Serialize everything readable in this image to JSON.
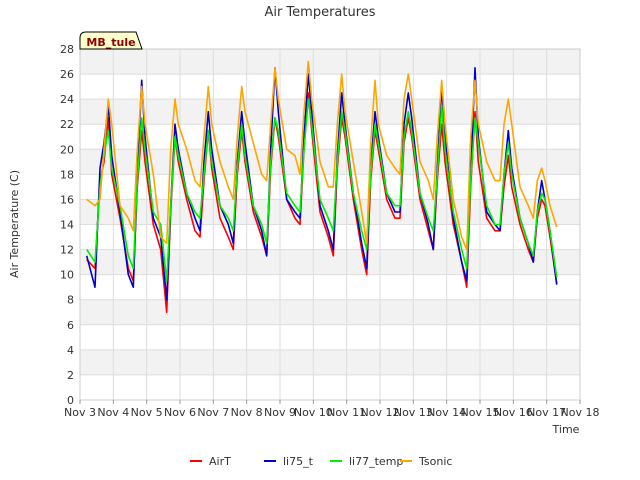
{
  "chart_data": {
    "type": "line",
    "title": "Air Temperatures",
    "xlabel": "Time",
    "ylabel": "Air Temperature (C)",
    "badge": "MB_tule",
    "xlim": [
      3,
      18
    ],
    "ylim": [
      0,
      28
    ],
    "x_ticks": [
      {
        "value": 3,
        "label": "Nov 3"
      },
      {
        "value": 4,
        "label": "Nov 4"
      },
      {
        "value": 5,
        "label": "Nov 5"
      },
      {
        "value": 6,
        "label": "Nov 6"
      },
      {
        "value": 7,
        "label": "Nov 7"
      },
      {
        "value": 8,
        "label": "Nov 8"
      },
      {
        "value": 9,
        "label": "Nov 9"
      },
      {
        "value": 10,
        "label": "Nov 10"
      },
      {
        "value": 11,
        "label": "Nov 11"
      },
      {
        "value": 12,
        "label": "Nov 12"
      },
      {
        "value": 13,
        "label": "Nov 13"
      },
      {
        "value": 14,
        "label": "Nov 14"
      },
      {
        "value": 15,
        "label": "Nov 15"
      },
      {
        "value": 16,
        "label": "Nov 16"
      },
      {
        "value": 17,
        "label": "Nov 17"
      },
      {
        "value": 18,
        "label": "Nov 18"
      }
    ],
    "y_ticks": [
      0,
      2,
      4,
      6,
      8,
      10,
      12,
      14,
      16,
      18,
      20,
      22,
      24,
      26,
      28
    ],
    "grid": true,
    "legend_position": "bottom",
    "series": [
      {
        "name": "AirT",
        "color": "#ff0000",
        "x": [
          3.2,
          3.45,
          3.6,
          3.72,
          3.85,
          3.95,
          4.2,
          4.45,
          4.6,
          4.72,
          4.85,
          4.95,
          5.2,
          5.42,
          5.6,
          5.72,
          5.85,
          5.95,
          6.2,
          6.45,
          6.6,
          6.72,
          6.85,
          6.95,
          7.2,
          7.45,
          7.6,
          7.72,
          7.85,
          7.95,
          8.2,
          8.45,
          8.6,
          8.72,
          8.85,
          8.95,
          9.2,
          9.45,
          9.6,
          9.72,
          9.85,
          9.95,
          10.2,
          10.45,
          10.6,
          10.72,
          10.85,
          10.95,
          11.2,
          11.45,
          11.6,
          11.72,
          11.85,
          11.95,
          12.2,
          12.45,
          12.6,
          12.72,
          12.85,
          12.95,
          13.2,
          13.45,
          13.6,
          13.72,
          13.85,
          13.95,
          14.2,
          14.45,
          14.6,
          14.72,
          14.85,
          14.95,
          15.2,
          15.45,
          15.6,
          15.72,
          15.85,
          15.95,
          16.2,
          16.45,
          16.6,
          16.72,
          16.85,
          16.95,
          17.1,
          17.3
        ],
        "values": [
          11.2,
          10.5,
          17.5,
          19.0,
          22.5,
          18.0,
          14.5,
          10.5,
          9.5,
          17.0,
          21.5,
          19.0,
          14.0,
          12.0,
          7.0,
          15.0,
          21.0,
          19.0,
          16.0,
          13.5,
          13.0,
          17.5,
          21.5,
          18.5,
          14.5,
          13.0,
          12.0,
          18.0,
          21.5,
          19.0,
          15.0,
          13.0,
          11.5,
          18.5,
          22.5,
          21.0,
          16.0,
          14.5,
          14.0,
          20.0,
          24.5,
          21.5,
          15.0,
          13.0,
          11.5,
          18.5,
          22.5,
          21.0,
          16.0,
          12.0,
          10.0,
          17.5,
          21.5,
          20.0,
          16.0,
          14.5,
          14.5,
          20.5,
          22.5,
          21.0,
          16.0,
          13.5,
          12.0,
          17.5,
          22.0,
          19.0,
          14.0,
          11.0,
          9.0,
          17.0,
          23.0,
          19.0,
          14.5,
          13.5,
          13.5,
          17.0,
          19.5,
          17.0,
          14.0,
          12.0,
          11.0,
          14.5,
          16.0,
          15.5,
          13.0,
          9.3
        ]
      },
      {
        "name": "li75_t",
        "color": "#0000cc",
        "x": [
          3.2,
          3.45,
          3.6,
          3.72,
          3.85,
          3.95,
          4.2,
          4.45,
          4.6,
          4.72,
          4.85,
          4.95,
          5.2,
          5.42,
          5.6,
          5.72,
          5.85,
          5.95,
          6.2,
          6.45,
          6.6,
          6.72,
          6.85,
          6.95,
          7.2,
          7.45,
          7.6,
          7.72,
          7.85,
          7.95,
          8.2,
          8.45,
          8.6,
          8.72,
          8.85,
          8.95,
          9.2,
          9.45,
          9.6,
          9.72,
          9.85,
          9.95,
          10.2,
          10.45,
          10.6,
          10.72,
          10.85,
          10.95,
          11.2,
          11.45,
          11.6,
          11.72,
          11.85,
          11.95,
          12.2,
          12.45,
          12.6,
          12.72,
          12.85,
          12.95,
          13.2,
          13.45,
          13.6,
          13.72,
          13.85,
          13.95,
          14.2,
          14.45,
          14.6,
          14.72,
          14.85,
          14.95,
          15.2,
          15.45,
          15.6,
          15.72,
          15.85,
          15.95,
          16.2,
          16.45,
          16.6,
          16.72,
          16.85,
          16.95,
          17.1,
          17.3
        ],
        "values": [
          11.5,
          9.0,
          18.5,
          20.5,
          23.5,
          19.5,
          15.0,
          10.0,
          9.0,
          18.0,
          25.5,
          21.0,
          14.5,
          13.0,
          8.0,
          15.5,
          22.0,
          20.0,
          16.5,
          14.5,
          13.5,
          19.0,
          23.0,
          20.0,
          15.5,
          14.0,
          12.5,
          19.0,
          23.0,
          20.5,
          15.5,
          13.5,
          11.5,
          20.0,
          26.5,
          23.0,
          16.0,
          15.0,
          14.5,
          21.0,
          26.0,
          23.0,
          15.5,
          13.5,
          12.0,
          19.5,
          24.5,
          22.0,
          16.5,
          12.5,
          10.5,
          18.5,
          23.0,
          21.0,
          16.5,
          15.0,
          15.0,
          22.0,
          24.5,
          22.5,
          16.5,
          14.0,
          12.0,
          18.5,
          25.0,
          21.0,
          14.5,
          11.0,
          9.5,
          18.0,
          26.5,
          21.0,
          15.0,
          14.0,
          13.5,
          18.0,
          21.5,
          18.5,
          14.5,
          12.5,
          11.0,
          15.0,
          17.5,
          16.0,
          13.5,
          9.2
        ]
      },
      {
        "name": "li77_temp",
        "color": "#00ee00",
        "x": [
          3.2,
          3.45,
          3.6,
          3.72,
          3.85,
          3.95,
          4.2,
          4.45,
          4.6,
          4.72,
          4.85,
          4.95,
          5.2,
          5.42,
          5.6,
          5.72,
          5.85,
          5.95,
          6.2,
          6.45,
          6.6,
          6.72,
          6.85,
          6.95,
          7.2,
          7.45,
          7.6,
          7.72,
          7.85,
          7.95,
          8.2,
          8.45,
          8.6,
          8.72,
          8.85,
          8.95,
          9.2,
          9.45,
          9.6,
          9.72,
          9.85,
          9.95,
          10.2,
          10.45,
          10.6,
          10.72,
          10.85,
          10.95,
          11.2,
          11.45,
          11.6,
          11.72,
          11.85,
          11.95,
          12.2,
          12.45,
          12.6,
          12.72,
          12.85,
          12.95,
          13.2,
          13.45,
          13.6,
          13.72,
          13.85,
          13.95,
          14.2,
          14.45,
          14.6,
          14.72,
          14.85,
          14.95,
          15.2,
          15.45,
          15.6,
          15.72,
          15.85,
          15.95,
          16.2,
          16.45,
          16.6,
          16.72,
          16.85,
          16.95,
          17.1,
          17.3
        ],
        "values": [
          12.0,
          11.0,
          17.0,
          19.5,
          21.5,
          18.5,
          15.5,
          11.5,
          10.5,
          17.5,
          22.5,
          20.0,
          15.0,
          14.0,
          9.5,
          15.5,
          21.0,
          19.5,
          16.5,
          15.0,
          14.5,
          18.0,
          21.5,
          19.0,
          15.5,
          14.5,
          13.5,
          18.5,
          22.0,
          19.5,
          15.5,
          14.0,
          12.5,
          19.0,
          22.5,
          21.5,
          16.5,
          15.5,
          15.0,
          20.0,
          24.0,
          22.0,
          16.0,
          14.5,
          13.5,
          19.0,
          23.0,
          21.5,
          16.5,
          13.5,
          12.0,
          18.0,
          22.0,
          20.5,
          16.5,
          15.5,
          15.5,
          21.0,
          23.0,
          21.5,
          16.5,
          14.5,
          13.5,
          18.0,
          23.5,
          20.0,
          15.0,
          12.0,
          10.5,
          17.5,
          22.5,
          20.5,
          15.5,
          14.0,
          14.0,
          18.0,
          20.5,
          18.0,
          14.5,
          12.5,
          11.5,
          15.0,
          16.5,
          16.0,
          13.5,
          9.8
        ]
      },
      {
        "name": "Tsonic",
        "color": "#ffa500",
        "x": [
          3.2,
          3.45,
          3.6,
          3.72,
          3.85,
          3.95,
          4.2,
          4.45,
          4.6,
          4.72,
          4.85,
          4.95,
          5.2,
          5.42,
          5.6,
          5.72,
          5.85,
          5.95,
          6.2,
          6.45,
          6.6,
          6.72,
          6.85,
          6.95,
          7.2,
          7.45,
          7.6,
          7.72,
          7.85,
          7.95,
          8.2,
          8.45,
          8.6,
          8.72,
          8.85,
          8.95,
          9.2,
          9.45,
          9.6,
          9.72,
          9.85,
          9.95,
          10.2,
          10.45,
          10.6,
          10.72,
          10.85,
          10.95,
          11.2,
          11.45,
          11.6,
          11.72,
          11.85,
          11.95,
          12.2,
          12.45,
          12.6,
          12.72,
          12.85,
          12.95,
          13.2,
          13.45,
          13.6,
          13.72,
          13.85,
          13.95,
          14.2,
          14.45,
          14.6,
          14.72,
          14.85,
          14.95,
          15.2,
          15.45,
          15.6,
          15.72,
          15.85,
          15.95,
          16.2,
          16.45,
          16.6,
          16.72,
          16.85,
          16.95,
          17.1,
          17.3
        ],
        "values": [
          16.0,
          15.5,
          16.0,
          20.0,
          24.0,
          22.0,
          15.5,
          14.5,
          13.5,
          20.0,
          25.0,
          22.0,
          18.0,
          13.0,
          12.5,
          20.0,
          24.0,
          22.0,
          20.0,
          17.5,
          17.0,
          21.0,
          25.0,
          22.0,
          19.0,
          17.0,
          16.0,
          21.0,
          25.0,
          23.0,
          20.5,
          18.0,
          17.5,
          22.0,
          26.5,
          24.0,
          20.0,
          19.5,
          18.0,
          23.0,
          27.0,
          24.0,
          19.0,
          17.0,
          17.0,
          22.0,
          26.0,
          23.0,
          19.0,
          15.0,
          12.5,
          20.5,
          25.5,
          22.0,
          19.5,
          18.5,
          18.0,
          24.0,
          26.0,
          24.0,
          19.0,
          17.5,
          16.0,
          21.0,
          25.5,
          22.0,
          16.0,
          13.0,
          12.0,
          21.0,
          25.5,
          22.0,
          19.0,
          17.5,
          17.5,
          22.0,
          24.0,
          22.0,
          17.0,
          15.5,
          14.5,
          17.5,
          18.5,
          17.5,
          15.5,
          13.8
        ]
      }
    ]
  }
}
